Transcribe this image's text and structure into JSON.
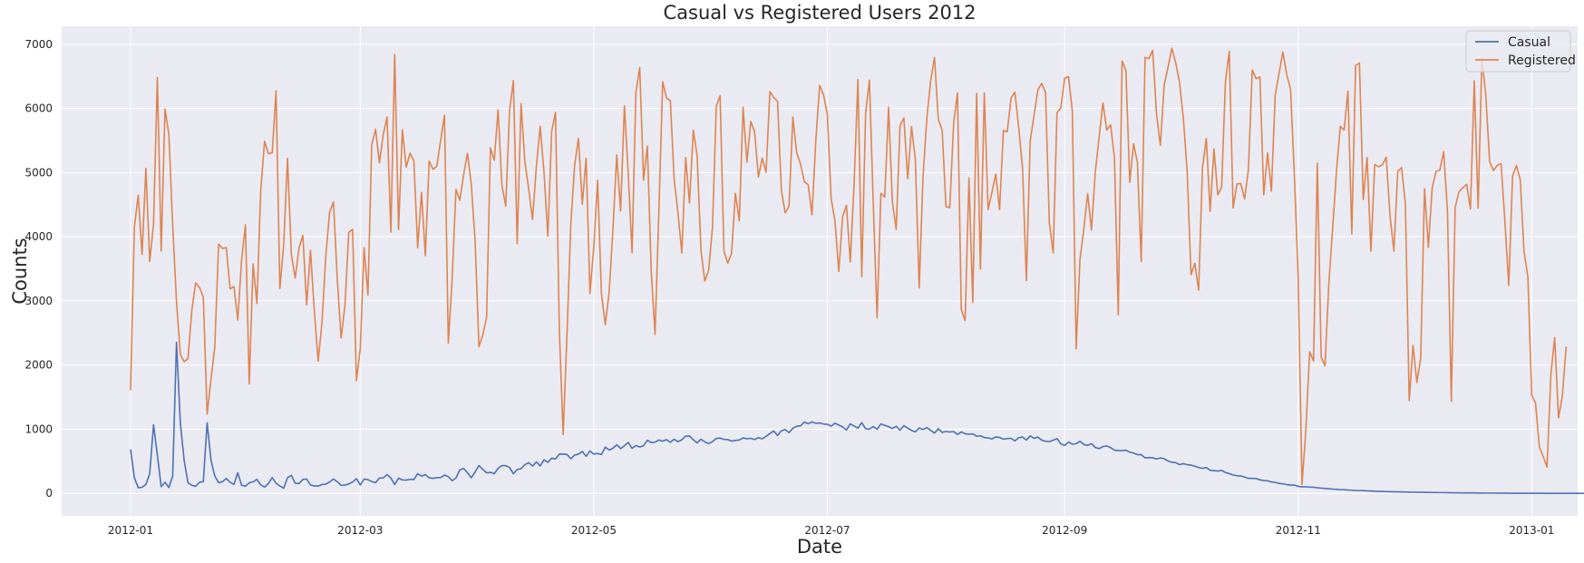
{
  "chart_data": {
    "type": "line",
    "title": "Casual vs Registered Users 2012",
    "xlabel": "Date",
    "ylabel": "Counts",
    "x_start": "2012-01-01",
    "xlim": [
      "2011-12-14",
      "2013-01-13"
    ],
    "ylim": [
      -350,
      7280
    ],
    "x_ticks": [
      "2012-01",
      "2012-03",
      "2012-05",
      "2012-07",
      "2012-09",
      "2012-11",
      "2013-01"
    ],
    "y_ticks": [
      0,
      1000,
      2000,
      3000,
      4000,
      5000,
      6000,
      7000
    ],
    "grid": true,
    "legend": "top-right",
    "colors": {
      "background": "#eaeaf2",
      "grid": "#ffffff",
      "Casual": "#4c72b0",
      "Registered": "#dd8452"
    },
    "series": [
      {
        "name": "Casual",
        "values": [
          686,
          244,
          89,
          95,
          140,
          307,
          1070,
          599,
          106,
          173,
          92,
          269,
          2355,
          1100,
          514,
          167,
          127,
          109,
          174,
          183,
          1100,
          520,
          271,
          168,
          181,
          233,
          174,
          140,
          322,
          128,
          112,
          165,
          180,
          218,
          134,
          98,
          155,
          246,
          159,
          115,
          80,
          245,
          282,
          159,
          152,
          218,
          224,
          130,
          116,
          115,
          138,
          145,
          178,
          224,
          182,
          125,
          130,
          147,
          177,
          230,
          132,
          224,
          214,
          184,
          167,
          240,
          241,
          294,
          239,
          138,
          238,
          210,
          207,
          219,
          216,
          307,
          270,
          292,
          244,
          234,
          246,
          248,
          285,
          261,
          198,
          240,
          365,
          390,
          323,
          243,
          335,
          434,
          375,
          321,
          328,
          307,
          390,
          434,
          432,
          405,
          306,
          372,
          385,
          447,
          479,
          426,
          491,
          428,
          524,
          484,
          548,
          537,
          613,
          612,
          607,
          540,
          598,
          612,
          655,
          578,
          661,
          613,
          622,
          606,
          721,
          676,
          704,
          758,
          698,
          743,
          794,
          703,
          746,
          722,
          744,
          829,
          792,
          800,
          832,
          815,
          837,
          796,
          845,
          806,
          836,
          893,
          895,
          836,
          788,
          844,
          803,
          776,
          808,
          856,
          862,
          842,
          839,
          815,
          826,
          833,
          864,
          852,
          858,
          841,
          867,
          851,
          889,
          933,
          973,
          903,
          977,
          995,
          946,
          1015,
          1046,
          1053,
          1112,
          1085,
          1114,
          1093,
          1097,
          1082,
          1077,
          1049,
          1094,
          1065,
          1037,
          988,
          1083,
          1050,
          1018,
          1103,
          1008,
          1001,
          1041,
          1000,
          1083,
          1061,
          1040,
          1012,
          1047,
          985,
          1055,
          1017,
          982,
          959,
          1019,
          996,
          1025,
          983,
          940,
          1008,
          951,
          966,
          957,
          964,
          919,
          958,
          930,
          923,
          928,
          891,
          897,
          871,
          864,
          849,
          880,
          872,
          844,
          856,
          858,
          820,
          869,
          878,
          831,
          896,
          859,
          878,
          830,
          813,
          807,
          829,
          853,
          773,
          749,
          799,
          768,
          775,
          812,
          762,
          748,
          776,
          716,
          698,
          731,
          739,
          713,
          673,
          667,
          668,
          673,
          643,
          628,
          603,
          604,
          555,
          559,
          555,
          537,
          553,
          540,
          506,
          486,
          479,
          448,
          463,
          448,
          441,
          423,
          404,
          390,
          403,
          360,
          356,
          348,
          359,
          326,
          308,
          288,
          275,
          273,
          254,
          235,
          234,
          232,
          212,
          200,
          196,
          179,
          171,
          156,
          150,
          137,
          130,
          130,
          110,
          101,
          104,
          97,
          95,
          88,
          83,
          76,
          73,
          67,
          64,
          58,
          58,
          52,
          51,
          45,
          44,
          43,
          39,
          37,
          34,
          33,
          31,
          28,
          27,
          26,
          24,
          23,
          21,
          20,
          19,
          18,
          17,
          16,
          15,
          14,
          13,
          12,
          12,
          11,
          10,
          10,
          9,
          8,
          8,
          7,
          7,
          6,
          6,
          5,
          5,
          5,
          4,
          4,
          4,
          3,
          3,
          3,
          3,
          2,
          2,
          2,
          2,
          2,
          2,
          1,
          1,
          1,
          1,
          1,
          1,
          1,
          1,
          1,
          1,
          1,
          1,
          1,
          1,
          0,
          0,
          0,
          0,
          0,
          0
        ]
      },
      {
        "name": "Registered",
        "values": [
          1608,
          4155,
          4649,
          3726,
          5066,
          3614,
          4195,
          6483,
          3779,
          5990,
          5601,
          4187,
          2984,
          2163,
          2052,
          2099,
          2853,
          3281,
          3211,
          3059,
          1236,
          1772,
          2281,
          3887,
          3817,
          3832,
          3186,
          3225,
          2701,
          3634,
          4186,
          1706,
          3578,
          2961,
          4719,
          5489,
          5296,
          5308,
          6272,
          3193,
          3876,
          5223,
          3724,
          3355,
          3823,
          4021,
          2939,
          3790,
          2842,
          2061,
          2661,
          3701,
          4384,
          4541,
          3338,
          2423,
          2926,
          4068,
          4114,
          1757,
          2251,
          3829,
          3091,
          5437,
          5676,
          5150,
          5591,
          5867,
          4073,
          6839,
          4114,
          5666,
          5085,
          5301,
          5185,
          3830,
          4690,
          3704,
          5180,
          5051,
          5101,
          5504,
          5893,
          2342,
          3336,
          4738,
          4567,
          4966,
          5299,
          4817,
          3939,
          2285,
          2467,
          2746,
          5385,
          5192,
          5978,
          4806,
          4475,
          5966,
          6434,
          3891,
          6075,
          5165,
          4744,
          4267,
          5096,
          5721,
          4997,
          4009,
          5640,
          5939,
          2544,
          917,
          2474,
          4194,
          5119,
          5535,
          4510,
          5221,
          3114,
          3844,
          4880,
          3116,
          2629,
          3124,
          4108,
          5277,
          4402,
          6040,
          4985,
          3751,
          6254,
          6637,
          4883,
          5412,
          3473,
          2482,
          4393,
          6418,
          6163,
          6121,
          4889,
          4367,
          3747,
          5234,
          4525,
          5660,
          5264,
          3788,
          3310,
          3476,
          4143,
          6035,
          6200,
          3774,
          3587,
          3748,
          4676,
          4247,
          6019,
          5161,
          5796,
          5638,
          4932,
          5226,
          5004,
          6263,
          6170,
          6113,
          4720,
          4373,
          4474,
          5866,
          5310,
          5135,
          4856,
          4813,
          4341,
          5506,
          6358,
          6217,
          5910,
          4595,
          4247,
          3458,
          4313,
          4491,
          3605,
          4829,
          6452,
          3379,
          5921,
          6440,
          4528,
          2739,
          4676,
          4618,
          6017,
          4543,
          4114,
          5734,
          5851,
          4904,
          5716,
          5204,
          3202,
          4931,
          5844,
          6434,
          6791,
          5828,
          5662,
          4468,
          4455,
          5773,
          6242,
          2865,
          2694,
          4913,
          2976,
          6235,
          3496,
          6241,
          4422,
          4692,
          4977,
          4425,
          5656,
          5637,
          6162,
          6253,
          5701,
          5067,
          3318,
          5495,
          5886,
          6290,
          6391,
          6246,
          4213,
          3747,
          5932,
          6010,
          6471,
          6496,
          5962,
          2253,
          3647,
          4116,
          4672,
          4105,
          5009,
          5554,
          6086,
          5662,
          5745,
          5237,
          2783,
          6739,
          6591,
          4848,
          5449,
          5158,
          3614,
          6796,
          6777,
          6904,
          5908,
          5424,
          6364,
          6643,
          6938,
          6711,
          6407,
          5848,
          5016,
          3409,
          3587,
          3168,
          5079,
          5531,
          4395,
          5370,
          4653,
          4772,
          6425,
          6891,
          4447,
          4823,
          4829,
          4591,
          5051,
          6600,
          6464,
          6491,
          4655,
          5307,
          4710,
          6209,
          6543,
          6881,
          6525,
          6305,
          4956,
          3370,
          139,
          990,
          2208,
          2063,
          5146,
          2127,
          1989,
          3262,
          4134,
          5016,
          5721,
          5664,
          6271,
          4043,
          6669,
          6707,
          4579,
          5236,
          3777,
          5125,
          5092,
          5121,
          5240,
          4320,
          3776,
          5019,
          5078,
          4518,
          1447,
          2307,
          1729,
          2107,
          4747,
          3834,
          4760,
          5016,
          5038,
          5328,
          4390,
          1437,
          4460,
          4700,
          4762,
          4819,
          4431,
          6431,
          4446,
          6784,
          6209,
          5173,
          5032,
          5113,
          5139,
          4239,
          3239,
          4945,
          5111,
          4890,
          3766,
          3372,
          1531,
          1409,
          723,
          577,
          411,
          1851,
          2428,
          1178,
          1508,
          2290
        ]
      }
    ]
  }
}
